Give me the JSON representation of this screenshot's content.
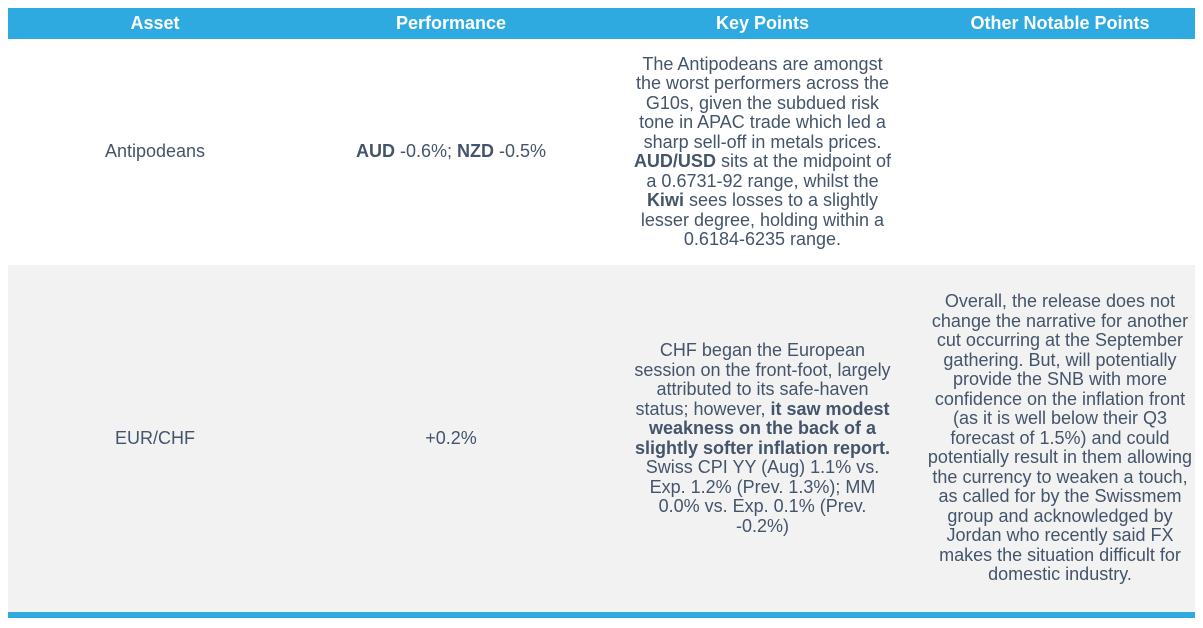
{
  "page": {
    "background_color": "#FFFFFF"
  },
  "table": {
    "accent_color": "#2EAAE1",
    "header_text_color": "#FFFFFF",
    "body_text_color": "#44546A",
    "alt_row_color": "#F2F2F2",
    "columns": [
      {
        "label": "Asset"
      },
      {
        "label": "Performance"
      },
      {
        "label": "Key Points"
      },
      {
        "label": "Other Notable Points"
      }
    ],
    "rows": [
      {
        "asset": "Antipodeans",
        "performance": [
          {
            "text": "AUD",
            "bold": true
          },
          {
            "text": " -0.6%; ",
            "bold": false
          },
          {
            "text": "NZD",
            "bold": true
          },
          {
            "text": " -0.5%",
            "bold": false
          }
        ],
        "key_points": [
          {
            "text": "The Antipodeans are amongst the worst performers across the G10s, given the subdued risk tone in APAC trade which led a sharp sell-off in metals prices. ",
            "bold": false
          },
          {
            "text": "AUD/USD",
            "bold": true
          },
          {
            "text": " sits at the midpoint of a 0.6731-92 range, whilst the ",
            "bold": false
          },
          {
            "text": "Kiwi",
            "bold": true
          },
          {
            "text": " sees losses to a slightly lesser degree, holding within a 0.6184-6235 range.",
            "bold": false
          }
        ],
        "other_notable_points": []
      },
      {
        "asset": "EUR/CHF",
        "performance": [
          {
            "text": "+0.2%",
            "bold": false
          }
        ],
        "key_points": [
          {
            "text": "CHF began the European session on the front-foot, largely attributed to its safe-haven status; however, ",
            "bold": false
          },
          {
            "text": "it saw modest weakness on the back of a slightly softer inflation report.",
            "bold": true
          },
          {
            "text": " Swiss CPI YY (Aug) 1.1% vs. Exp. 1.2% (Prev. 1.3%); MM 0.0% vs. Exp. 0.1% (Prev. -0.2%)",
            "bold": false
          }
        ],
        "other_notable_points": [
          {
            "text": "Overall, the release does not change the narrative for another cut occurring at the September gathering. But, will potentially provide the SNB with more confidence on the inflation front (as it is well below their Q3 forecast of 1.5%) and could potentially result in them allowing the currency to weaken a touch, as called for by the Swissmem group and acknowledged by Jordan who recently said FX makes the situation difficult for domestic industry.",
            "bold": false
          }
        ]
      }
    ]
  }
}
